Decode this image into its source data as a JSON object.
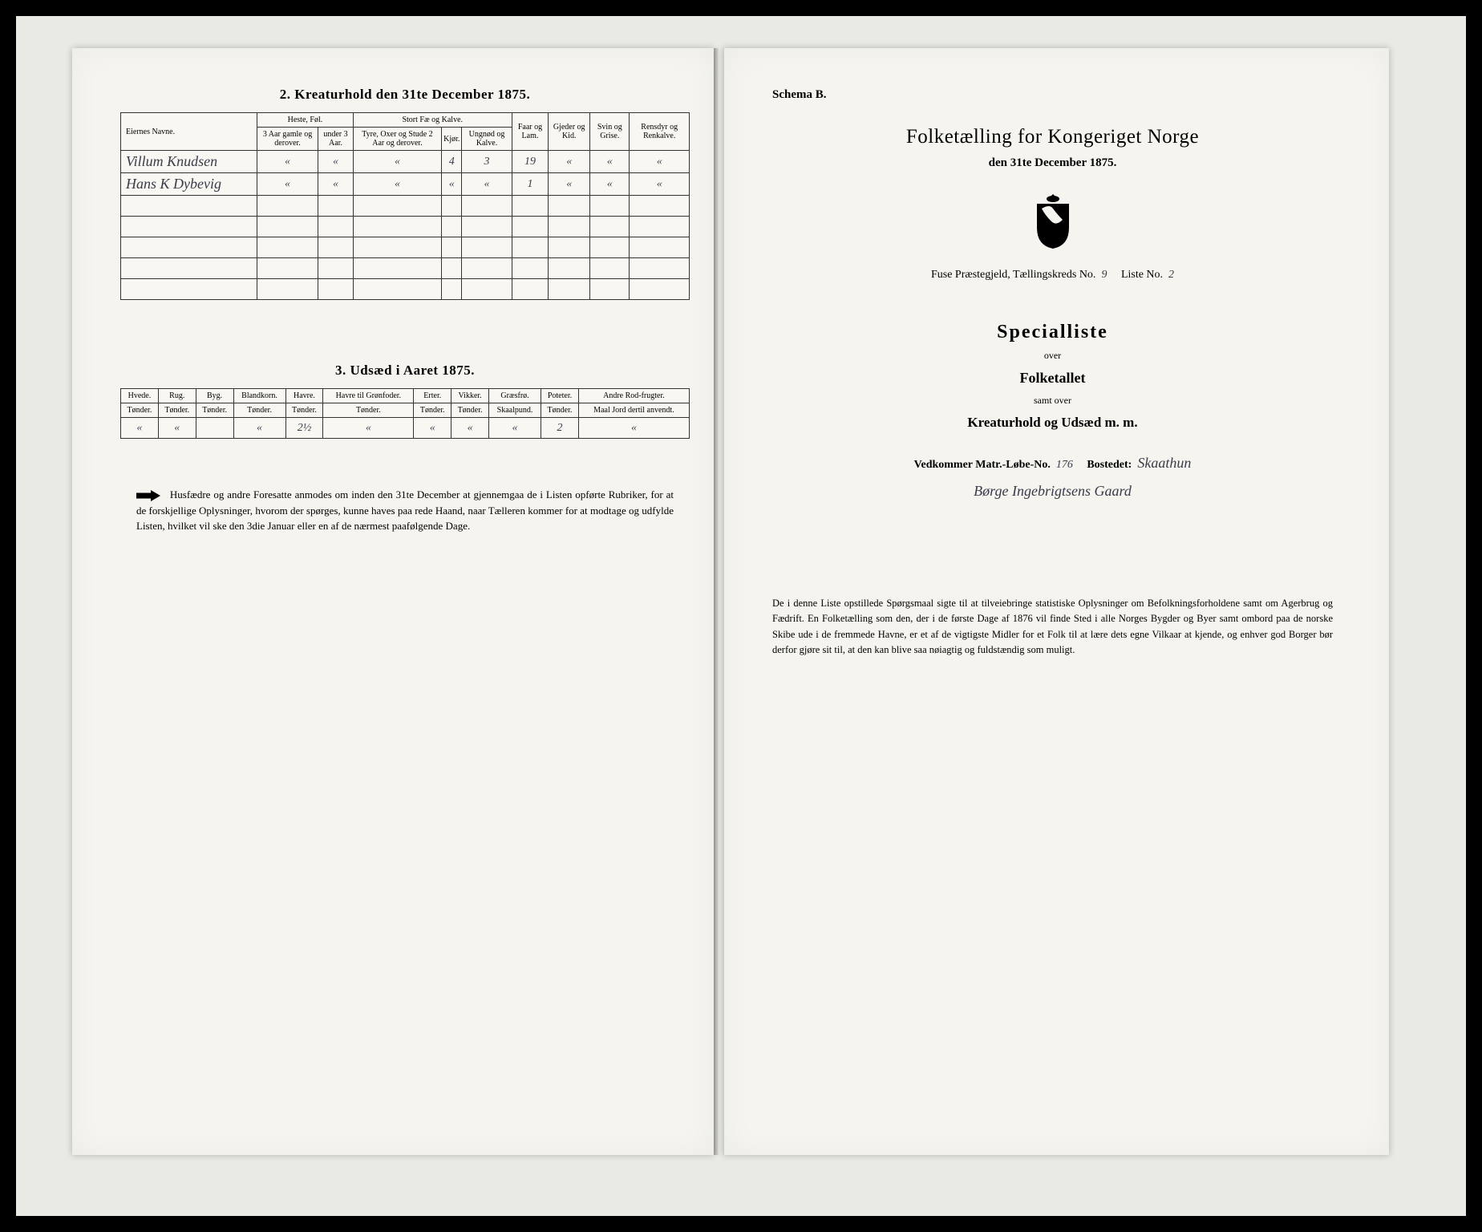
{
  "left": {
    "section2": {
      "title": "2.  Kreaturhold den 31te December 1875.",
      "col_name": "Eiernes Navne.",
      "grp_heste": "Heste, Føl.",
      "grp_stort": "Stort Fæ og Kalve.",
      "col_h1": "3 Aar gamle og derover.",
      "col_h2": "under 3 Aar.",
      "col_s1": "Tyre, Oxer og Stude 2 Aar og derover.",
      "col_s2": "Kjør.",
      "col_s3": "Ungnød og Kalve.",
      "col_faar": "Faar og Lam.",
      "col_gjed": "Gjeder og Kid.",
      "col_svin": "Svin og Grise.",
      "col_rens": "Rensdyr og Renkalve.",
      "rows": [
        {
          "name": "Villum Knudsen",
          "h1": "«",
          "h2": "«",
          "s1": "«",
          "s2": "4",
          "s3": "3",
          "faar": "19",
          "gjed": "«",
          "svin": "«",
          "rens": "«"
        },
        {
          "name": "Hans K Dybevig",
          "h1": "«",
          "h2": "«",
          "s1": "«",
          "s2": "«",
          "s3": "«",
          "faar": "1",
          "gjed": "«",
          "svin": "«",
          "rens": "«"
        }
      ]
    },
    "section3": {
      "title": "3.  Udsæd i Aaret 1875.",
      "cols": [
        {
          "h": "Hvede.",
          "u": "Tønder."
        },
        {
          "h": "Rug.",
          "u": "Tønder."
        },
        {
          "h": "Byg.",
          "u": "Tønder."
        },
        {
          "h": "Blandkorn.",
          "u": "Tønder."
        },
        {
          "h": "Havre.",
          "u": "Tønder."
        },
        {
          "h": "Havre til Grønfoder.",
          "u": "Tønder."
        },
        {
          "h": "Erter.",
          "u": "Tønder."
        },
        {
          "h": "Vikker.",
          "u": "Tønder."
        },
        {
          "h": "Græsfrø.",
          "u": "Skaalpund."
        },
        {
          "h": "Poteter.",
          "u": "Tønder."
        },
        {
          "h": "Andre Rod-frugter.",
          "u": "Maal Jord dertil anvendt."
        }
      ],
      "row": [
        "«",
        "«",
        "",
        "«",
        "2½",
        "«",
        "«",
        "«",
        "«",
        "2",
        "«"
      ]
    },
    "footnote": "Husfædre og andre Foresatte anmodes om inden den 31te December at gjennemgaa de i Listen opførte Rubriker, for at de forskjellige Oplysninger, hvorom der spørges, kunne haves paa rede Haand, naar Tælleren kommer for at modtage og udfylde Listen, hvilket vil ske den 3die Januar eller en af de nærmest paafølgende Dage."
  },
  "right": {
    "schema": "Schema B.",
    "title": "Folketælling for Kongeriget Norge",
    "subtitle": "den 31te December 1875.",
    "meta_prefix": "Fuse",
    "meta_label1": "Præstegjeld, Tællingskreds No.",
    "meta_val1": "9",
    "meta_label2": "Liste No.",
    "meta_val2": "2",
    "special": "Specialliste",
    "over": "over",
    "folketallet": "Folketallet",
    "samt": "samt over",
    "kreatur": "Kreaturhold og Udsæd m. m.",
    "vedk_label1": "Vedkommer Matr.-Løbe-No.",
    "vedk_val1": "176",
    "vedk_label2": "Bostedet:",
    "vedk_val2": "Skaathun",
    "hand_line": "Børge Ingebrigtsens Gaard",
    "footnote": "De i denne Liste opstillede Spørgsmaal sigte til at tilveiebringe statistiske Oplysninger om Befolkningsforholdene samt om Agerbrug og Fædrift.  En Folketælling som den, der i de første Dage af 1876 vil finde Sted i alle Norges Bygder og Byer samt ombord paa de norske Skibe ude i de fremmede Havne, er et af de vigtigste Midler for et Folk til at lære dets egne Vilkaar at kjende, og enhver god Borger bør derfor gjøre sit til, at den kan blive saa nøiagtig og fuldstændig som muligt."
  },
  "colors": {
    "bg": "#000000",
    "paper": "#f5f4ee",
    "ink": "#222222"
  }
}
